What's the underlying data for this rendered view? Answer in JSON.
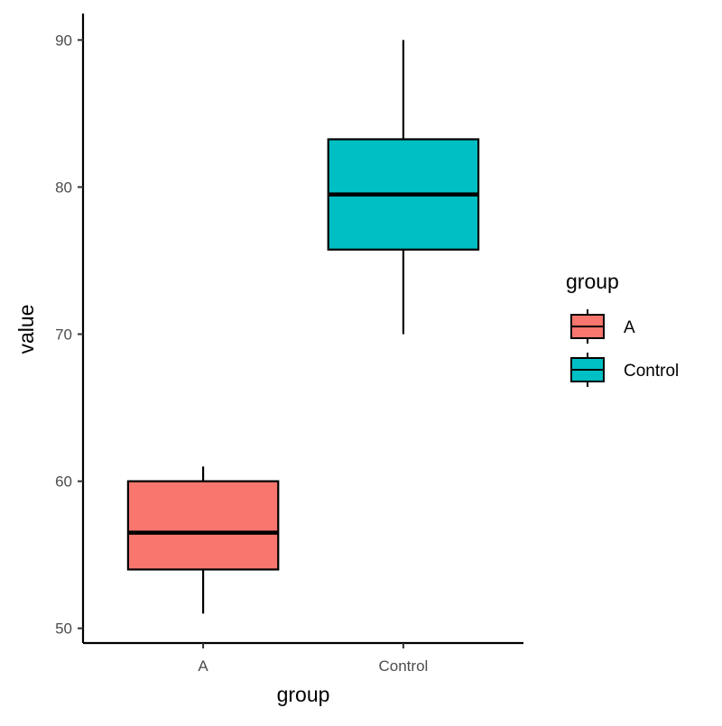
{
  "chart_data": {
    "type": "box",
    "title": "",
    "xlabel": "group",
    "ylabel": "value",
    "ylim": [
      49,
      91.8
    ],
    "y_ticks": [
      50,
      60,
      70,
      80,
      90
    ],
    "y_tick_labels": [
      "50",
      "60",
      "70",
      "80",
      "90"
    ],
    "categories": [
      "A",
      "Control"
    ],
    "series": [
      {
        "name": "A",
        "category": "A",
        "color": "#F8766D",
        "whisker_low": 51,
        "q1": 54,
        "median": 56.5,
        "q3": 60,
        "whisker_high": 61
      },
      {
        "name": "Control",
        "category": "Control",
        "color": "#00BFC4",
        "whisker_low": 70,
        "q1": 75.75,
        "median": 79.5,
        "q3": 83.25,
        "whisker_high": 90
      }
    ],
    "grid": false,
    "legend": {
      "title": "group",
      "position": "right",
      "items": [
        "A",
        "Control"
      ]
    }
  }
}
